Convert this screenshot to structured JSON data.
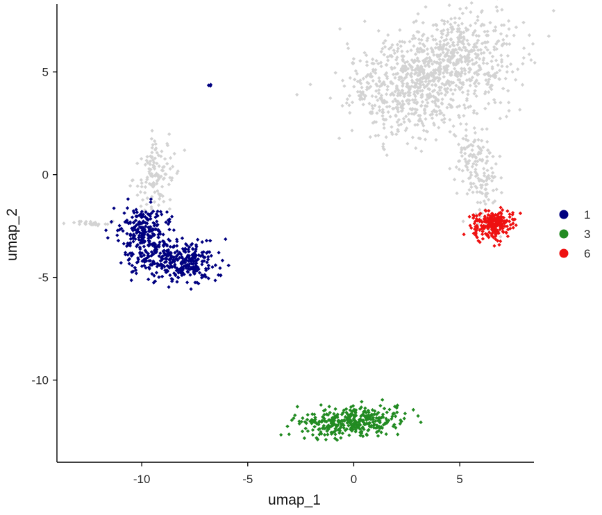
{
  "chart_data": {
    "type": "scatter",
    "title": "",
    "xlabel": "umap_1",
    "ylabel": "umap_2",
    "xlim": [
      -14,
      8.5
    ],
    "ylim": [
      -14,
      8.3
    ],
    "grid": false,
    "legend_position": "right",
    "x_ticks": [
      {
        "value": -10,
        "label": "-10"
      },
      {
        "value": -5,
        "label": "-5"
      },
      {
        "value": 0,
        "label": "0"
      },
      {
        "value": 5,
        "label": "5"
      }
    ],
    "y_ticks": [
      {
        "value": 5,
        "label": "5"
      },
      {
        "value": 0,
        "label": "0"
      },
      {
        "value": -5,
        "label": "-5"
      },
      {
        "value": -10,
        "label": "-10"
      }
    ],
    "legend": [
      {
        "label": "1",
        "color": "#000080"
      },
      {
        "label": "3",
        "color": "#228B22"
      },
      {
        "label": "6",
        "color": "#EE1111"
      }
    ],
    "background_color": "#D3D3D3",
    "clusters": [
      {
        "group": "background",
        "color": "#D3D3D3",
        "n": 1050,
        "centers": [
          [
            4.0,
            4.8
          ],
          [
            2.0,
            4.0
          ],
          [
            5.2,
            5.8
          ]
        ],
        "spread": [
          1.35,
          1.15
        ]
      },
      {
        "group": "background",
        "color": "#D3D3D3",
        "n": 160,
        "centers": [
          [
            5.6,
            1.2
          ],
          [
            6.1,
            -0.6
          ]
        ],
        "spread": [
          0.45,
          0.75
        ]
      },
      {
        "group": "background",
        "color": "#D3D3D3",
        "n": 120,
        "centers": [
          [
            -9.2,
            0.6
          ],
          [
            -9.4,
            -0.6
          ]
        ],
        "spread": [
          0.45,
          0.65
        ]
      },
      {
        "group": "background",
        "color": "#D3D3D3",
        "n": 28,
        "centers": [
          [
            -12.3,
            -2.35
          ]
        ],
        "spread": [
          0.45,
          0.06
        ]
      },
      {
        "group": "1",
        "color": "#000080",
        "n": 560,
        "centers": [
          [
            -10.0,
            -2.4
          ],
          [
            -9.7,
            -3.6
          ],
          [
            -8.6,
            -4.3
          ],
          [
            -7.5,
            -4.2
          ]
        ],
        "spread": [
          0.6,
          0.55
        ]
      },
      {
        "group": "1",
        "color": "#000080",
        "n": 3,
        "centers": [
          [
            -6.75,
            4.4
          ]
        ],
        "spread": [
          0.04,
          0.05
        ]
      },
      {
        "group": "3",
        "color": "#228B22",
        "n": 360,
        "centers": [
          [
            0.0,
            -12.1
          ],
          [
            -1.2,
            -12.1
          ],
          [
            1.0,
            -11.9
          ]
        ],
        "spread": [
          0.75,
          0.35
        ]
      },
      {
        "group": "6",
        "color": "#EE1111",
        "n": 220,
        "centers": [
          [
            6.6,
            -2.4
          ]
        ],
        "spread": [
          0.45,
          0.35
        ]
      }
    ]
  }
}
